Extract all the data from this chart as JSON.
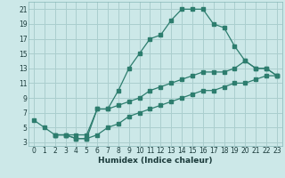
{
  "xlabel": "Humidex (Indice chaleur)",
  "bg_color": "#cce8e8",
  "grid_color": "#aacece",
  "line_color": "#2d7d6e",
  "xlim": [
    -0.5,
    23.5
  ],
  "ylim": [
    2.5,
    22
  ],
  "xticks": [
    0,
    1,
    2,
    3,
    4,
    5,
    6,
    7,
    8,
    9,
    10,
    11,
    12,
    13,
    14,
    15,
    16,
    17,
    18,
    19,
    20,
    21,
    22,
    23
  ],
  "yticks": [
    3,
    5,
    7,
    9,
    11,
    13,
    15,
    17,
    19,
    21
  ],
  "line1_x": [
    0,
    1,
    2,
    3,
    4,
    5,
    6,
    7,
    8,
    9,
    10,
    11,
    12,
    13,
    14,
    15,
    16,
    17,
    18,
    19,
    20,
    21,
    22,
    23
  ],
  "line1_y": [
    6,
    5,
    4,
    4,
    4,
    4,
    7.5,
    7.5,
    10,
    13,
    15,
    17,
    17.5,
    19.5,
    21,
    21,
    21,
    19,
    18.5,
    16,
    14,
    13,
    13,
    12
  ],
  "line2_x": [
    2,
    3,
    4,
    5,
    6,
    7,
    8,
    9,
    10,
    11,
    12,
    13,
    14,
    15,
    16,
    17,
    18,
    19,
    20,
    21,
    22,
    23
  ],
  "line2_y": [
    4,
    4,
    3.5,
    3.5,
    7.5,
    7.5,
    8,
    8.5,
    9,
    10,
    10.5,
    11,
    11.5,
    12,
    12.5,
    12.5,
    12.5,
    13,
    14,
    13,
    13,
    12
  ],
  "line3_x": [
    2,
    3,
    4,
    5,
    6,
    7,
    8,
    9,
    10,
    11,
    12,
    13,
    14,
    15,
    16,
    17,
    18,
    19,
    20,
    21,
    22,
    23
  ],
  "line3_y": [
    4,
    4,
    3.5,
    3.5,
    4,
    5,
    5.5,
    6.5,
    7,
    7.5,
    8,
    8.5,
    9,
    9.5,
    10,
    10,
    10.5,
    11,
    11,
    11.5,
    12,
    12
  ]
}
